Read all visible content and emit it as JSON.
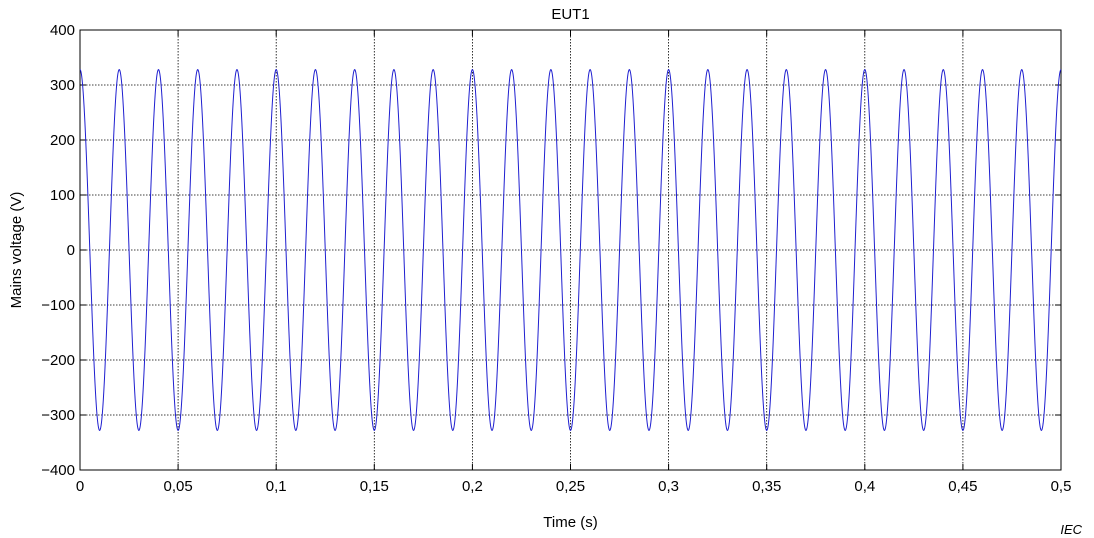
{
  "chart_data": {
    "type": "line",
    "title": "EUT1",
    "xlabel": "Time  (s)",
    "ylabel": "Mains voltage  (V)",
    "xlim": [
      0,
      0.5
    ],
    "ylim": [
      -400,
      400
    ],
    "xticks": [
      0,
      0.05,
      0.1,
      0.15,
      0.2,
      0.25,
      0.3,
      0.35,
      0.4,
      0.45,
      0.5
    ],
    "xtick_labels": [
      "0",
      "0,05",
      "0,1",
      "0,15",
      "0,2",
      "0,25",
      "0,3",
      "0,35",
      "0,4",
      "0,45",
      "0,5"
    ],
    "yticks": [
      -400,
      -300,
      -200,
      -100,
      0,
      100,
      200,
      300,
      400
    ],
    "ytick_labels": [
      "−400",
      "−300",
      "−200",
      "−100",
      "0",
      "100",
      "200",
      "300",
      "400"
    ],
    "grid": true,
    "series": [
      {
        "waveform": "sine",
        "amplitude": 328,
        "frequency_hz": 50,
        "phase_at_t0_deg": 90,
        "color": "#1f1fd0"
      }
    ],
    "credit": "IEC"
  }
}
